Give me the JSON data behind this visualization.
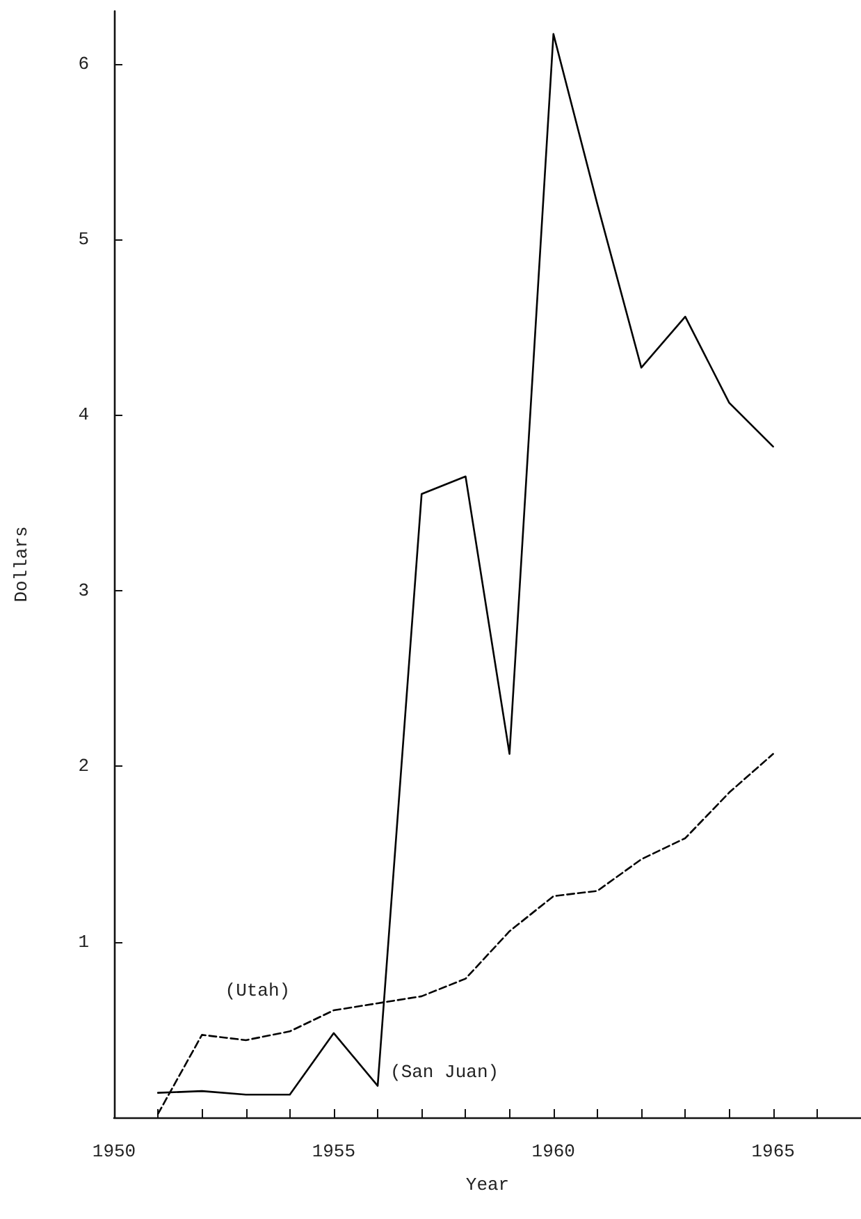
{
  "chart_data": {
    "type": "line",
    "xlabel": "Year",
    "ylabel": "Dollars",
    "x": [
      1951,
      1952,
      1953,
      1954,
      1955,
      1956,
      1957,
      1958,
      1959,
      1960,
      1961,
      1962,
      1963,
      1964,
      1965
    ],
    "series": [
      {
        "name": "(San Juan)",
        "color": "#000000",
        "line_style": "solid",
        "values": [
          0.14,
          0.15,
          0.13,
          0.13,
          0.48,
          0.18,
          3.55,
          3.65,
          2.07,
          6.17,
          5.2,
          4.27,
          4.56,
          4.07,
          3.82
        ]
      },
      {
        "name": "(Utah)",
        "color": "#000000",
        "line_style": "dashed",
        "values": [
          0.02,
          0.47,
          0.44,
          0.49,
          0.61,
          0.65,
          0.69,
          0.79,
          1.06,
          1.26,
          1.29,
          1.47,
          1.59,
          1.85,
          2.07
        ]
      }
    ],
    "xlim": [
      1950,
      1967
    ],
    "ylim": [
      0,
      6.3
    ],
    "xticks": [
      1950,
      {
        "value": 1951,
        "label": null
      },
      {
        "value": 1952,
        "label": null
      },
      {
        "value": 1953,
        "label": null
      },
      {
        "value": 1954,
        "label": null
      },
      1955,
      {
        "value": 1956,
        "label": null
      },
      {
        "value": 1957,
        "label": null
      },
      {
        "value": 1958,
        "label": null
      },
      {
        "value": 1959,
        "label": null
      },
      1960,
      {
        "value": 1961,
        "label": null
      },
      {
        "value": 1962,
        "label": null
      },
      {
        "value": 1963,
        "label": null
      },
      {
        "value": 1964,
        "label": null
      },
      1965,
      {
        "value": 1966,
        "label": null
      }
    ],
    "yticks": [
      1,
      2,
      3,
      4,
      5,
      6
    ],
    "grid": false,
    "legend": false,
    "marker": "none"
  }
}
